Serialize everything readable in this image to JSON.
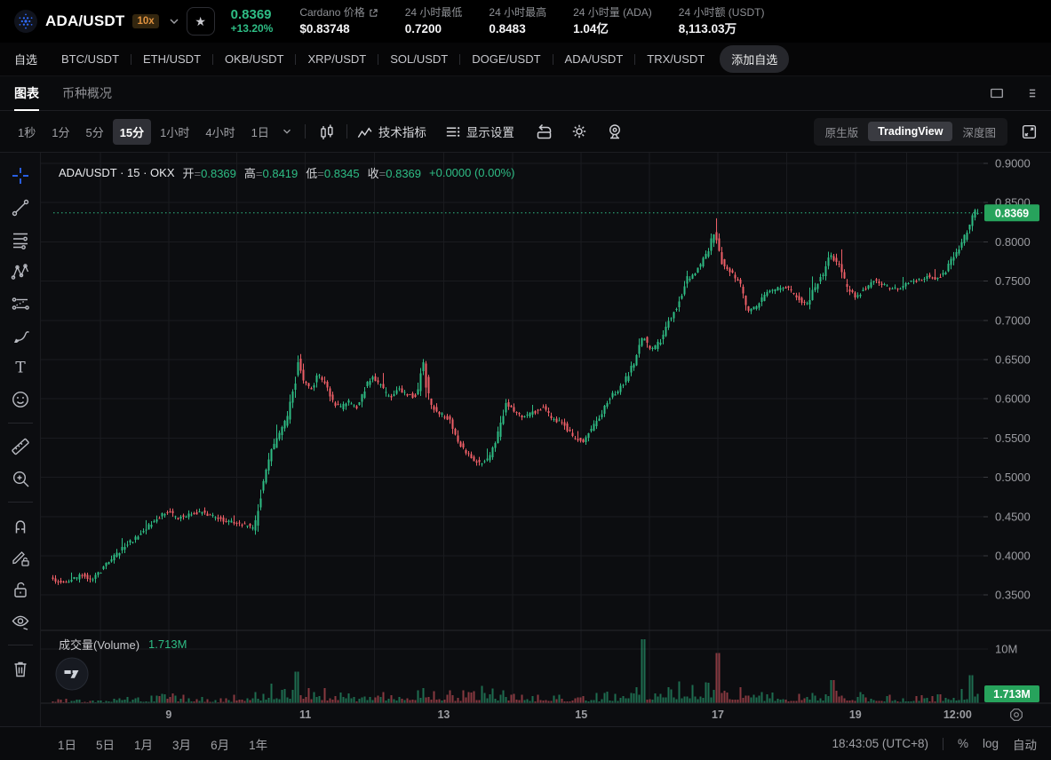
{
  "colors": {
    "up": "#2ebd85",
    "down": "#ef5f67",
    "up_vol": "rgba(46,189,133,0.55)",
    "down_vol": "rgba(239,95,103,0.55)",
    "badge_green": "#27a35c",
    "grid": "#1a1b1f",
    "axis_text": "#9b9ca1",
    "crosshair_tool_blue": "#2d6bff",
    "leverage_orange": "#e0923f"
  },
  "header": {
    "pair": "ADA/USDT",
    "leverage": "10x",
    "star": "★",
    "price": "0.8369",
    "change": "+13.20%",
    "stats": [
      {
        "label": "Cardano 价格",
        "value": "$0.83748"
      },
      {
        "label": "24 小时最低",
        "value": "0.7200"
      },
      {
        "label": "24 小时最高",
        "value": "0.8483"
      },
      {
        "label": "24 小时量 (ADA)",
        "value": "1.04亿"
      },
      {
        "label": "24 小时额 (USDT)",
        "value": "8,113.03万"
      }
    ]
  },
  "pairs_bar": {
    "favorites": "自选",
    "pairs": [
      "BTC/USDT",
      "ETH/USDT",
      "OKB/USDT",
      "XRP/USDT",
      "SOL/USDT",
      "DOGE/USDT",
      "ADA/USDT",
      "TRX/USDT"
    ],
    "add": "添加自选"
  },
  "view_tabs": {
    "chart": "图表",
    "overview": "币种概况"
  },
  "toolbar": {
    "intervals": [
      "1秒",
      "1分",
      "5分",
      "15分",
      "1小时",
      "4小时",
      "1日"
    ],
    "active_interval": "15分",
    "indicators": "技术指标",
    "display_settings": "显示设置",
    "modes": [
      "原生版",
      "TradingView",
      "深度图"
    ],
    "active_mode": "TradingView"
  },
  "legend": {
    "title": "ADA/USDT · 15 · OKX",
    "equals": "=",
    "o_label": "开",
    "o": "0.8369",
    "h_label": "高",
    "h": "0.8419",
    "l_label": "低",
    "l": "0.8345",
    "c_label": "收",
    "c": "0.8369",
    "change": "+0.0000 (0.00%)"
  },
  "volume_legend": {
    "label": "成交量(Volume)",
    "value": "1.713M"
  },
  "badges": {
    "last_price": "0.8369",
    "last_volume": "1.713M"
  },
  "bottom_bar": {
    "ranges": [
      "1日",
      "5日",
      "1月",
      "3月",
      "6月",
      "1年"
    ],
    "clock": "18:43:05 (UTC+8)",
    "percent": "%",
    "log": "log",
    "auto": "自动"
  },
  "icons": {
    "top_toolbar": [
      "candlestick-style-icon",
      "indicators-icon",
      "display-settings-icon",
      "undo-icon",
      "settings-gear-icon",
      "screenshot-icon",
      "expand-icon"
    ],
    "left_toolbar": [
      "crosshair-tool-icon",
      "trend-line-tool-icon",
      "fib-retracement-tool-icon",
      "xabcd-pattern-tool-icon",
      "forecast-tool-icon",
      "brush-tool-icon",
      "text-tool-icon",
      "emoji-tool-icon",
      "ruler-tool-icon",
      "zoom-in-tool-icon",
      "magnet-tool-icon",
      "drawing-lock-tool-icon",
      "lock-all-tool-icon",
      "hide-drawings-tool-icon",
      "remove-drawings-tool-icon"
    ],
    "misc": [
      "ada-logo",
      "star-icon",
      "chevron-down-icon",
      "external-link-icon",
      "window-icon",
      "panel-menu-icon",
      "tradingview-watermark",
      "axis-settings-icon"
    ]
  },
  "chart_data": {
    "type": "candlestick+volume",
    "symbol": "ADA/USDT",
    "interval": "15",
    "exchange": "OKX",
    "ohlc_last": {
      "open": 0.8369,
      "high": 0.8419,
      "low": 0.8345,
      "close": 0.8369
    },
    "last_price": 0.8369,
    "last_volume": 1.713,
    "price_axis": {
      "min": 0.35,
      "max": 0.9,
      "step": 0.05,
      "labels": [
        "0.9000",
        "0.8500",
        "0.8000",
        "0.7500",
        "0.7000",
        "0.6500",
        "0.6000",
        "0.5500",
        "0.5000",
        "0.4500",
        "0.4000",
        "0.3500"
      ]
    },
    "volume_axis": {
      "label": "10M",
      "value": 10
    },
    "time_ticks": [
      {
        "t": 0.126,
        "label": "9"
      },
      {
        "t": 0.273,
        "label": "11"
      },
      {
        "t": 0.422,
        "label": "13"
      },
      {
        "t": 0.57,
        "label": "15"
      },
      {
        "t": 0.717,
        "label": "17"
      },
      {
        "t": 0.865,
        "label": "19"
      },
      {
        "t": 0.975,
        "label": "12:00"
      }
    ],
    "price_anchors": [
      [
        0.0,
        0.372
      ],
      [
        0.016,
        0.365
      ],
      [
        0.035,
        0.376
      ],
      [
        0.045,
        0.369
      ],
      [
        0.064,
        0.393
      ],
      [
        0.083,
        0.415
      ],
      [
        0.098,
        0.428
      ],
      [
        0.112,
        0.444
      ],
      [
        0.126,
        0.458
      ],
      [
        0.136,
        0.448
      ],
      [
        0.15,
        0.452
      ],
      [
        0.164,
        0.456
      ],
      [
        0.179,
        0.448
      ],
      [
        0.195,
        0.443
      ],
      [
        0.21,
        0.44
      ],
      [
        0.22,
        0.434
      ],
      [
        0.229,
        0.492
      ],
      [
        0.239,
        0.535
      ],
      [
        0.249,
        0.558
      ],
      [
        0.256,
        0.578
      ],
      [
        0.263,
        0.612
      ],
      [
        0.267,
        0.648
      ],
      [
        0.272,
        0.625
      ],
      [
        0.281,
        0.612
      ],
      [
        0.289,
        0.632
      ],
      [
        0.296,
        0.618
      ],
      [
        0.304,
        0.598
      ],
      [
        0.312,
        0.588
      ],
      [
        0.321,
        0.596
      ],
      [
        0.331,
        0.59
      ],
      [
        0.338,
        0.61
      ],
      [
        0.346,
        0.628
      ],
      [
        0.356,
        0.617
      ],
      [
        0.365,
        0.601
      ],
      [
        0.375,
        0.613
      ],
      [
        0.384,
        0.607
      ],
      [
        0.394,
        0.601
      ],
      [
        0.402,
        0.645
      ],
      [
        0.409,
        0.593
      ],
      [
        0.42,
        0.581
      ],
      [
        0.43,
        0.574
      ],
      [
        0.44,
        0.546
      ],
      [
        0.451,
        0.529
      ],
      [
        0.463,
        0.517
      ],
      [
        0.474,
        0.526
      ],
      [
        0.484,
        0.559
      ],
      [
        0.491,
        0.594
      ],
      [
        0.501,
        0.584
      ],
      [
        0.511,
        0.577
      ],
      [
        0.522,
        0.583
      ],
      [
        0.532,
        0.59
      ],
      [
        0.541,
        0.574
      ],
      [
        0.553,
        0.569
      ],
      [
        0.564,
        0.551
      ],
      [
        0.574,
        0.545
      ],
      [
        0.583,
        0.562
      ],
      [
        0.593,
        0.579
      ],
      [
        0.602,
        0.601
      ],
      [
        0.612,
        0.611
      ],
      [
        0.621,
        0.626
      ],
      [
        0.631,
        0.65
      ],
      [
        0.639,
        0.68
      ],
      [
        0.648,
        0.661
      ],
      [
        0.658,
        0.673
      ],
      [
        0.667,
        0.7
      ],
      [
        0.677,
        0.721
      ],
      [
        0.686,
        0.752
      ],
      [
        0.696,
        0.761
      ],
      [
        0.706,
        0.781
      ],
      [
        0.716,
        0.811
      ],
      [
        0.725,
        0.772
      ],
      [
        0.734,
        0.761
      ],
      [
        0.744,
        0.746
      ],
      [
        0.753,
        0.709
      ],
      [
        0.763,
        0.721
      ],
      [
        0.772,
        0.736
      ],
      [
        0.784,
        0.741
      ],
      [
        0.795,
        0.742
      ],
      [
        0.805,
        0.731
      ],
      [
        0.815,
        0.719
      ],
      [
        0.824,
        0.741
      ],
      [
        0.834,
        0.761
      ],
      [
        0.84,
        0.786
      ],
      [
        0.85,
        0.771
      ],
      [
        0.859,
        0.741
      ],
      [
        0.869,
        0.729
      ],
      [
        0.879,
        0.741
      ],
      [
        0.888,
        0.751
      ],
      [
        0.898,
        0.746
      ],
      [
        0.907,
        0.739
      ],
      [
        0.917,
        0.743
      ],
      [
        0.926,
        0.749
      ],
      [
        0.936,
        0.751
      ],
      [
        0.946,
        0.756
      ],
      [
        0.955,
        0.753
      ],
      [
        0.965,
        0.761
      ],
      [
        0.974,
        0.781
      ],
      [
        0.984,
        0.801
      ],
      [
        0.991,
        0.822
      ],
      [
        0.996,
        0.84
      ],
      [
        1.0,
        0.837
      ]
    ],
    "volume_envelope": [
      [
        0.0,
        0.6
      ],
      [
        0.05,
        0.5
      ],
      [
        0.1,
        1.0
      ],
      [
        0.126,
        1.3
      ],
      [
        0.18,
        0.7
      ],
      [
        0.22,
        1.8
      ],
      [
        0.24,
        2.8
      ],
      [
        0.263,
        3.5
      ],
      [
        0.28,
        2.5
      ],
      [
        0.32,
        1.3
      ],
      [
        0.36,
        1.5
      ],
      [
        0.4,
        2.5
      ],
      [
        0.43,
        1.6
      ],
      [
        0.463,
        2.2
      ],
      [
        0.49,
        1.8
      ],
      [
        0.53,
        1.2
      ],
      [
        0.574,
        1.2
      ],
      [
        0.62,
        1.8
      ],
      [
        0.64,
        2.6
      ],
      [
        0.667,
        2.8
      ],
      [
        0.7,
        3.0
      ],
      [
        0.72,
        3.2
      ],
      [
        0.75,
        1.8
      ],
      [
        0.8,
        1.3
      ],
      [
        0.835,
        2.2
      ],
      [
        0.86,
        1.6
      ],
      [
        0.91,
        1.1
      ],
      [
        0.95,
        1.2
      ],
      [
        0.975,
        2.0
      ],
      [
        0.99,
        3.0
      ],
      [
        1.0,
        1.7
      ]
    ],
    "volume_spikes": [
      {
        "t": 0.263,
        "m": 5.8
      },
      {
        "t": 0.636,
        "m": 11.8
      },
      {
        "t": 0.716,
        "m": 9.3
      },
      {
        "t": 0.84,
        "m": 4.3
      },
      {
        "t": 0.991,
        "m": 5.2
      }
    ]
  }
}
